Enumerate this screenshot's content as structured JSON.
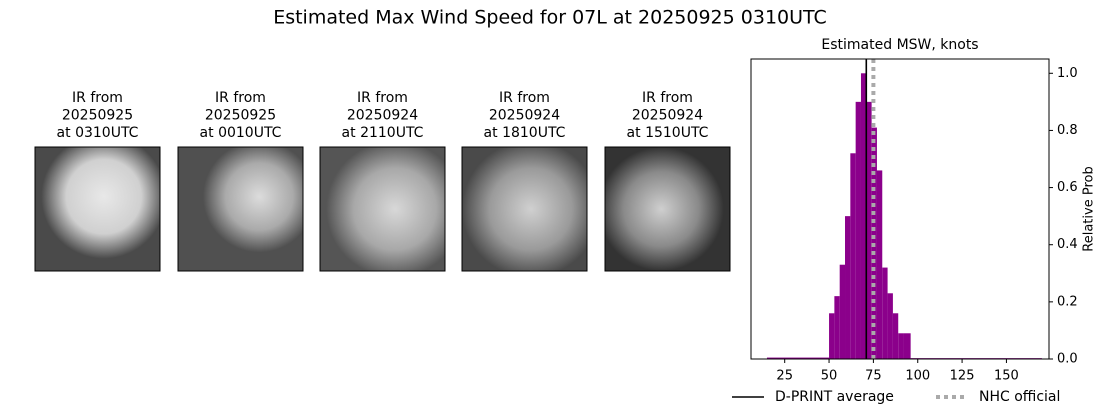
{
  "title": "Estimated Max Wind Speed for 07L at 20250925 0310UTC",
  "panels": [
    {
      "label": [
        "IR from",
        "20250925",
        "at 0310UTC"
      ]
    },
    {
      "label": [
        "IR from",
        "20250925",
        "at 0010UTC"
      ]
    },
    {
      "label": [
        "IR from",
        "20250924",
        "at 2110UTC"
      ]
    },
    {
      "label": [
        "IR from",
        "20250924",
        "at 1810UTC"
      ]
    },
    {
      "label": [
        "IR from",
        "20250924",
        "at 1510UTC"
      ]
    }
  ],
  "chart_data": {
    "type": "histogram",
    "title": "Estimated MSW, knots",
    "y_label": "Relative Prob",
    "color": "#8b008b",
    "bins": [
      15,
      50,
      53,
      56,
      59,
      62,
      65,
      68,
      71,
      74,
      77,
      80,
      83,
      86,
      89,
      92,
      96,
      170
    ],
    "counts": [
      0.005,
      0.16,
      0.22,
      0.33,
      0.5,
      0.72,
      0.9,
      1.0,
      0.9,
      0.81,
      0.66,
      0.32,
      0.23,
      0.16,
      0.09,
      0.09,
      0.003
    ],
    "xlim": [
      6,
      174
    ],
    "xticks": [
      25,
      50,
      75,
      100,
      125,
      150
    ],
    "ylim": [
      0,
      1.05
    ],
    "yticks": [
      {
        "value": 0,
        "label": "0.0"
      },
      {
        "value": 0.2,
        "label": "0.2"
      },
      {
        "value": 0.4,
        "label": "0.4"
      },
      {
        "value": 0.6,
        "label": "0.6"
      },
      {
        "value": 0.8,
        "label": "0.8"
      },
      {
        "value": 1,
        "label": "1.0"
      }
    ],
    "lines": [
      {
        "name": "D-PRINT average",
        "x": 71,
        "color": "#000000",
        "style": "solid"
      },
      {
        "name": "NHC official",
        "x": 75,
        "color": "#aaaaaa",
        "style": "dotted"
      }
    ]
  }
}
